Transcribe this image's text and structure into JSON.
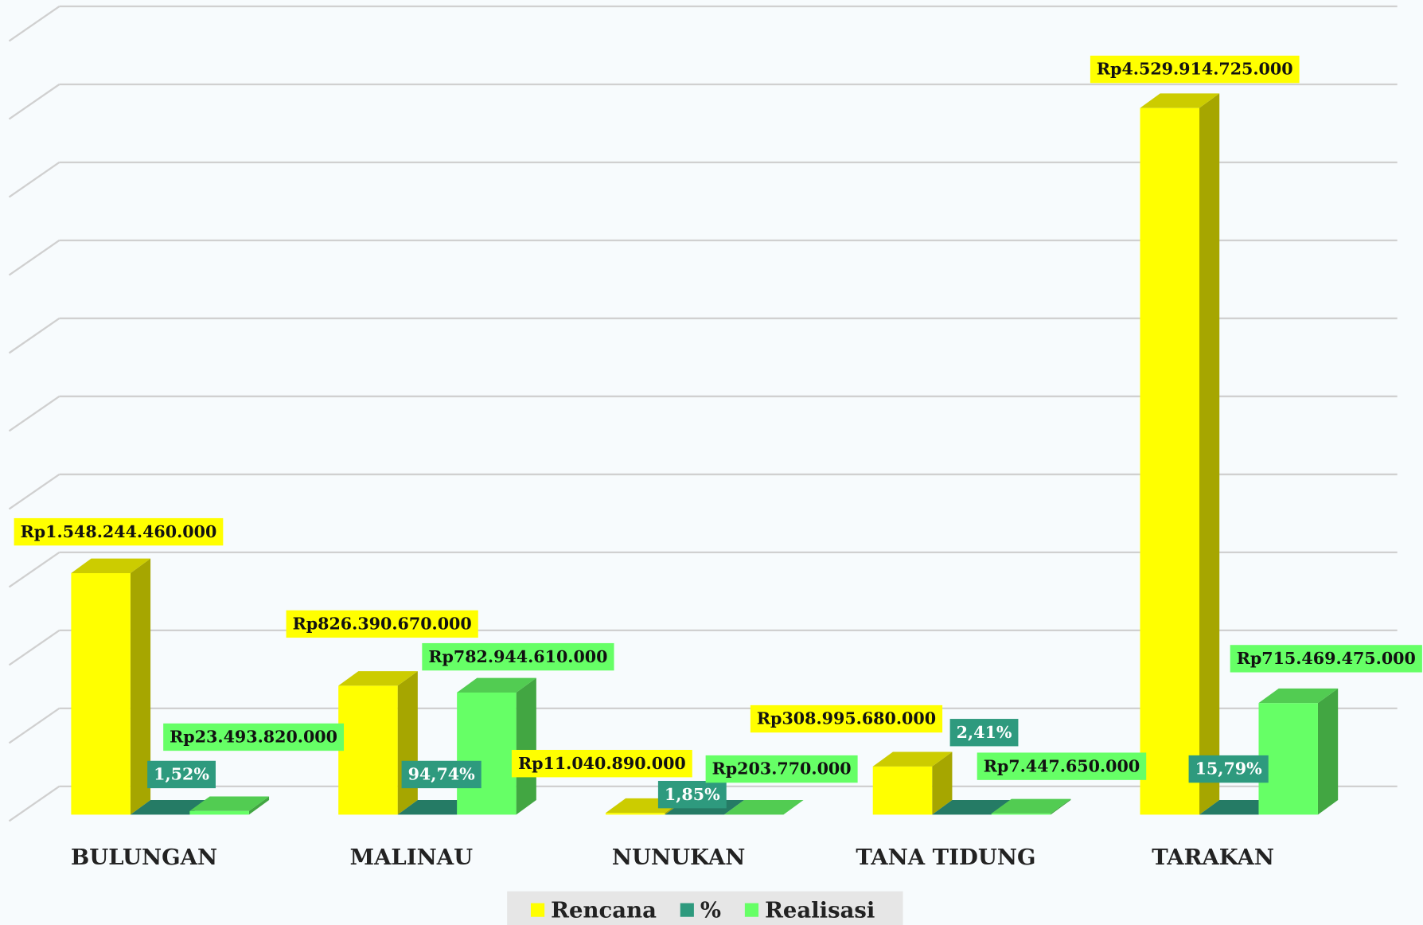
{
  "chart_data": {
    "type": "bar3d",
    "categories": [
      "BULUNGAN",
      "MALINAU",
      "NUNUKAN",
      "TANA TIDUNG",
      "TARAKAN"
    ],
    "series": [
      {
        "name": "Rencana",
        "color": "#ffff00",
        "values": [
          1548244460000,
          826390670000,
          11040890000,
          308995680000,
          4529914725000
        ],
        "value_labels": [
          "Rp1.548.244.460.000",
          "Rp826.390.670.000",
          "Rp11.040.890.000",
          "Rp308.995.680.000",
          "Rp4.529.914.725.000"
        ]
      },
      {
        "name": "%",
        "color": "#2e9a7e",
        "values": [
          1.52,
          94.74,
          1.85,
          2.41,
          15.79
        ],
        "value_labels": [
          "1,52%",
          "94,74%",
          "1,85%",
          "2,41%",
          "15,79%"
        ]
      },
      {
        "name": "Realisasi",
        "color": "#66ff66",
        "values": [
          23493820000,
          782944610000,
          203770000,
          7447650000,
          715469475000
        ],
        "value_labels": [
          "Rp23.493.820.000",
          "Rp782.944.610.000",
          "Rp203.770.000",
          "Rp7.447.650.000",
          "Rp715.469.475.000"
        ]
      }
    ],
    "ylim": [
      0,
      5000000000000
    ],
    "yticks": [
      0,
      500000000000,
      1000000000000,
      1500000000000,
      2000000000000,
      2500000000000,
      3000000000000,
      3500000000000,
      4000000000000,
      4500000000000,
      5000000000000
    ],
    "grid": true,
    "legend": "bottom"
  }
}
